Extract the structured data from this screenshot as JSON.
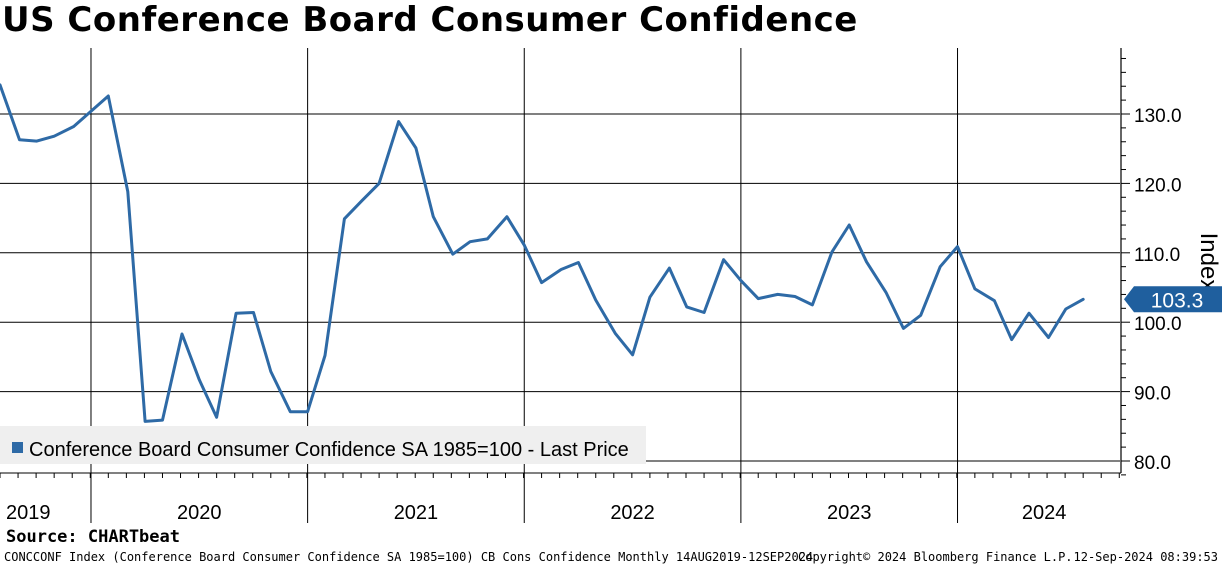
{
  "chart_data": {
    "type": "line",
    "title": "US Conference Board Consumer Confidence",
    "ylabel": "Index",
    "xlabel": "",
    "ylim": [
      78,
      140
    ],
    "y_ticks": [
      80,
      90,
      100,
      110,
      120,
      130
    ],
    "y_tick_labels": [
      "80.0",
      "90.0",
      "100.0",
      "110.0",
      "120.0",
      "130.0"
    ],
    "year_labels": [
      "2019",
      "2020",
      "2021",
      "2022",
      "2023",
      "2024"
    ],
    "year_label_positions": [
      2019.58,
      2020.5,
      2021.5,
      2022.5,
      2023.5,
      2024.4
    ],
    "year_boundaries": [
      2020,
      2021,
      2022,
      2023,
      2024
    ],
    "x_range": [
      2019.58,
      2024.75
    ],
    "grid": true,
    "legend": "bottom-left",
    "last_price": 103.3,
    "last_price_label": "103.3",
    "line_color": "#2e6aa6",
    "series": [
      {
        "name": "Conference Board Consumer Confidence SA 1985=100 - Last Price",
        "x": [
          2019.58,
          2019.67,
          2019.75,
          2019.83,
          2019.92,
          2020.0,
          2020.08,
          2020.17,
          2020.25,
          2020.33,
          2020.42,
          2020.5,
          2020.58,
          2020.67,
          2020.75,
          2020.83,
          2020.92,
          2021.0,
          2021.08,
          2021.17,
          2021.25,
          2021.33,
          2021.42,
          2021.5,
          2021.58,
          2021.67,
          2021.75,
          2021.83,
          2021.92,
          2022.0,
          2022.08,
          2022.17,
          2022.25,
          2022.33,
          2022.42,
          2022.5,
          2022.58,
          2022.67,
          2022.75,
          2022.83,
          2022.92,
          2023.0,
          2023.08,
          2023.17,
          2023.25,
          2023.33,
          2023.42,
          2023.5,
          2023.58,
          2023.67,
          2023.75,
          2023.83,
          2023.92,
          2024.0,
          2024.08,
          2024.17,
          2024.25,
          2024.33,
          2024.42,
          2024.5,
          2024.58
        ],
        "values": [
          134.2,
          126.3,
          126.1,
          126.8,
          128.2,
          130.4,
          132.6,
          118.8,
          85.7,
          85.9,
          98.3,
          91.7,
          86.3,
          101.3,
          101.4,
          92.9,
          87.1,
          87.1,
          95.2,
          114.9,
          117.5,
          120.0,
          128.9,
          125.1,
          115.2,
          109.8,
          111.6,
          112.0,
          115.2,
          111.1,
          105.7,
          107.6,
          108.6,
          103.2,
          98.4,
          95.3,
          103.6,
          107.8,
          102.2,
          101.4,
          109.0,
          106.0,
          103.4,
          104.0,
          103.7,
          102.5,
          110.1,
          114.0,
          108.7,
          104.3,
          99.1,
          101.0,
          108.0,
          110.9,
          104.8,
          103.1,
          97.5,
          101.3,
          97.8,
          101.9,
          103.3
        ]
      }
    ]
  },
  "source": "Source: CHARTbeat",
  "footer": {
    "left": "CONCCONF Index (Conference Board Consumer Confidence SA 1985=100) CB Cons Confidence  Monthly 14AUG2019-12SEP2024",
    "middle": "Copyright© 2024 Bloomberg Finance L.P.",
    "right": "12-Sep-2024 08:39:53"
  }
}
